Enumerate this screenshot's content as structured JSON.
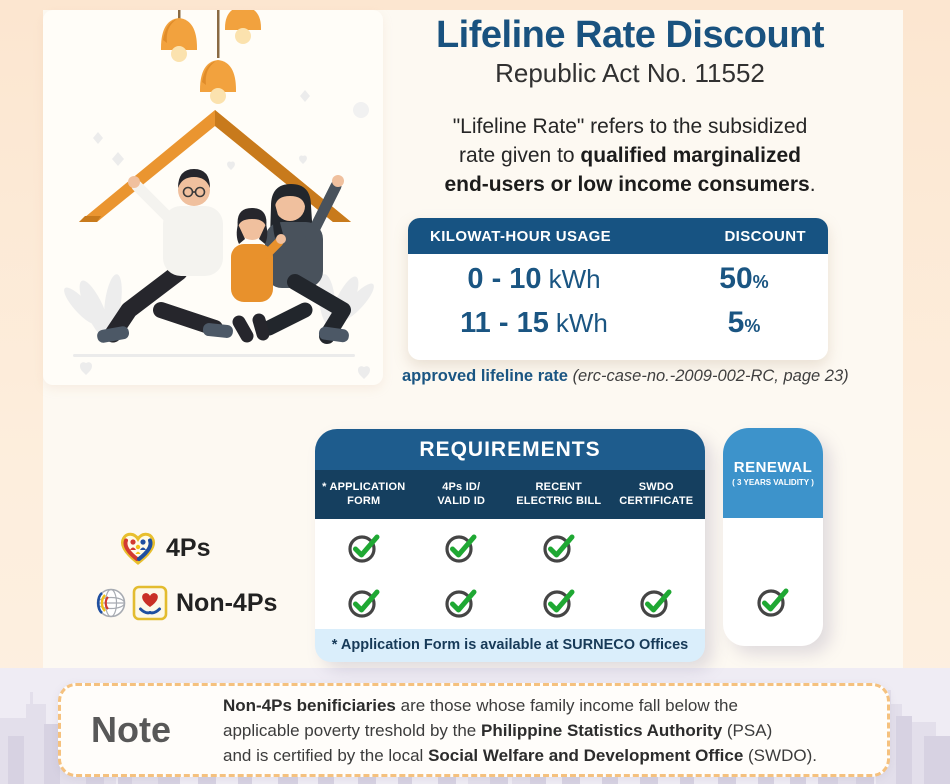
{
  "colors": {
    "title_blue": "#19527f",
    "table_header_blue": "#175382",
    "requirements_header_blue": "#1e5c8d",
    "columns_band_navy": "#153f5f",
    "renewal_blue": "#3d93cb",
    "check_green": "#1fa833",
    "note_border_orange": "#f5c17e",
    "illustration_orange": "#ea9530"
  },
  "header": {
    "title": "Lifeline Rate Discount",
    "subtitle": "Republic Act No. 11552"
  },
  "intro": {
    "l1": "\"Lifeline Rate\" refers to the subsidized",
    "l2_regular": "rate given to ",
    "l2_bold": "qualified marginalized",
    "l3_bold": "end-users or low income consumers",
    "l3_regular": "."
  },
  "rate_table": {
    "usage_header": "KILOWAT-HOUR USAGE",
    "discount_header": "DISCOUNT",
    "rows": [
      {
        "range": "0 - 10",
        "unit": "kWh",
        "value": "50",
        "suffix": "%"
      },
      {
        "range": "11 - 15",
        "unit": "kWh",
        "value": "5",
        "suffix": "%"
      }
    ],
    "caption_link": "approved lifeline rate ",
    "caption_note": "(erc-case-no.-2009-002-RC, page 23)"
  },
  "requirements": {
    "title": "REQUIREMENTS",
    "columns": [
      {
        "l1": "* APPLICATION",
        "l2": "FORM"
      },
      {
        "l1": "4Ps ID/",
        "l2": "VALID ID"
      },
      {
        "l1": "RECENT",
        "l2": "ELECTRIC BILL"
      },
      {
        "l1": "SWDO",
        "l2": "CERTIFICATE"
      }
    ],
    "row_labels": [
      "4Ps",
      "Non-4Ps"
    ],
    "checks": [
      [
        true,
        true,
        true,
        false
      ],
      [
        true,
        true,
        true,
        true
      ]
    ],
    "renewal_checks": [
      false,
      true
    ],
    "footnote": "* Application Form is available at SURNECO Offices"
  },
  "renewal": {
    "title": "RENEWAL",
    "subtitle": "( 3 YEARS VALIDITY )"
  },
  "note": {
    "label": "Note",
    "l1_bold": "Non-4Ps benificiaries",
    "l1_regular": " are those whose family income fall below the",
    "l2_regular_a": "applicable poverty treshold by the ",
    "l2_bold": "Philippine Statistics Authority",
    "l2_regular_b": " (PSA)",
    "l3_regular_a": "and is certified by the local ",
    "l3_bold": "Social Welfare and Development Office",
    "l3_regular_b": " (SWDO)."
  }
}
